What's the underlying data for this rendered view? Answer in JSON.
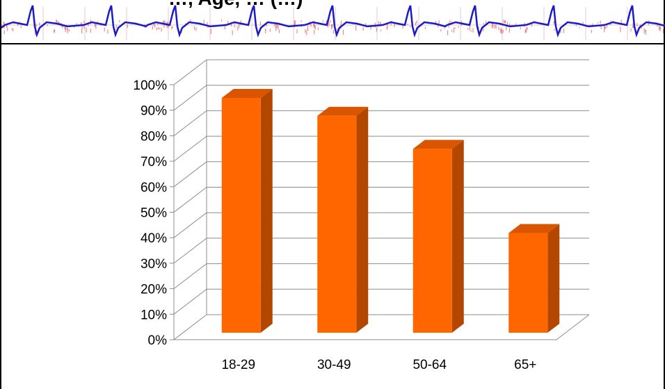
{
  "header": {
    "title": "…, Age, … (…)"
  },
  "colors": {
    "bar_front": "#FF6600",
    "bar_side": "#B34700",
    "bar_top": "#D95500",
    "ecg_line": "#1A1AC8",
    "ecg_noise": "#E06060",
    "gridline": "#8C8C8C"
  },
  "chart_data": {
    "type": "bar",
    "categories": [
      "18-29",
      "30-49",
      "50-64",
      "65+"
    ],
    "values": [
      94,
      87,
      74,
      41
    ],
    "value_format": "percent",
    "ylim": [
      0,
      100
    ],
    "ytick_step": 10,
    "ytick_labels": [
      "0%",
      "10%",
      "20%",
      "30%",
      "40%",
      "50%",
      "60%",
      "70%",
      "80%",
      "90%",
      "100%"
    ],
    "title": "",
    "xlabel": "",
    "ylabel": "",
    "grid": true,
    "style": "3d-column"
  }
}
